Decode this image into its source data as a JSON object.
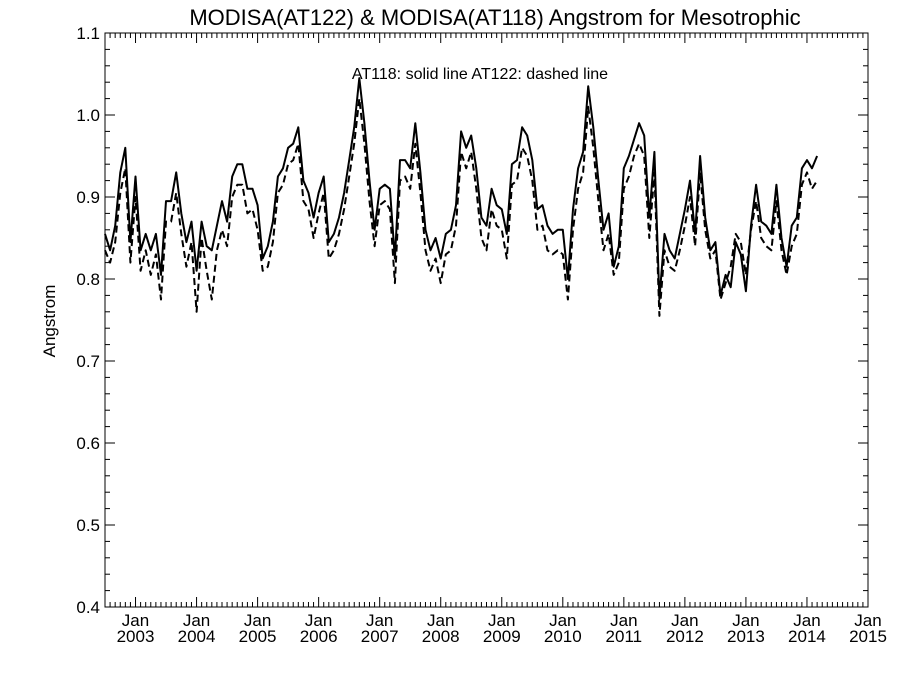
{
  "chart_data": {
    "type": "line",
    "title": "MODISA(AT122) & MODISA(AT118)  Angstrom for Mesotrophic",
    "annotation": "AT118: solid line   AT122: dashed line",
    "ylabel": "Angstrom",
    "xlabel": "",
    "ylim": [
      0.4,
      1.1
    ],
    "y_ticks": [
      "0.4",
      "0.5",
      "0.6",
      "0.7",
      "0.8",
      "0.9",
      "1.0",
      "1.1"
    ],
    "xlim": [
      "2002-07",
      "2015-01"
    ],
    "x_ticks": [
      {
        "month": "Jan",
        "year": "2003",
        "date": "2003-01"
      },
      {
        "month": "Jan",
        "year": "2004",
        "date": "2004-01"
      },
      {
        "month": "Jan",
        "year": "2005",
        "date": "2005-01"
      },
      {
        "month": "Jan",
        "year": "2006",
        "date": "2006-01"
      },
      {
        "month": "Jan",
        "year": "2007",
        "date": "2007-01"
      },
      {
        "month": "Jan",
        "year": "2008",
        "date": "2008-01"
      },
      {
        "month": "Jan",
        "year": "2009",
        "date": "2009-01"
      },
      {
        "month": "Jan",
        "year": "2010",
        "date": "2010-01"
      },
      {
        "month": "Jan",
        "year": "2011",
        "date": "2011-01"
      },
      {
        "month": "Jan",
        "year": "2012",
        "date": "2012-01"
      },
      {
        "month": "Jan",
        "year": "2013",
        "date": "2013-01"
      },
      {
        "month": "Jan",
        "year": "2014",
        "date": "2014-01"
      },
      {
        "month": "Jan",
        "year": "2015",
        "date": "2015-01"
      }
    ],
    "start_month": "2002-07",
    "series": [
      {
        "name": "AT118",
        "style": "solid",
        "color": "#000000",
        "values": [
          0.855,
          0.835,
          0.865,
          0.93,
          0.96,
          0.845,
          0.925,
          0.835,
          0.855,
          0.835,
          0.855,
          0.805,
          0.895,
          0.895,
          0.93,
          0.88,
          0.845,
          0.87,
          0.81,
          0.87,
          0.84,
          0.835,
          0.865,
          0.895,
          0.87,
          0.925,
          0.94,
          0.94,
          0.91,
          0.91,
          0.89,
          0.825,
          0.84,
          0.87,
          0.925,
          0.935,
          0.96,
          0.965,
          0.985,
          0.92,
          0.905,
          0.875,
          0.905,
          0.925,
          0.845,
          0.855,
          0.875,
          0.905,
          0.945,
          0.985,
          1.045,
          0.99,
          0.92,
          0.86,
          0.91,
          0.915,
          0.91,
          0.825,
          0.945,
          0.945,
          0.935,
          0.99,
          0.93,
          0.86,
          0.835,
          0.85,
          0.825,
          0.855,
          0.86,
          0.89,
          0.98,
          0.96,
          0.975,
          0.935,
          0.875,
          0.865,
          0.91,
          0.89,
          0.885,
          0.855,
          0.94,
          0.945,
          0.985,
          0.975,
          0.945,
          0.885,
          0.89,
          0.865,
          0.855,
          0.86,
          0.86,
          0.8,
          0.885,
          0.935,
          0.955,
          1.035,
          0.985,
          0.92,
          0.86,
          0.88,
          0.815,
          0.84,
          0.935,
          0.95,
          0.97,
          0.99,
          0.975,
          0.875,
          0.955,
          0.775,
          0.855,
          0.835,
          0.825,
          0.855,
          0.885,
          0.92,
          0.855,
          0.95,
          0.875,
          0.835,
          0.845,
          0.78,
          0.805,
          0.79,
          0.845,
          0.83,
          0.785,
          0.865,
          0.915,
          0.87,
          0.865,
          0.855,
          0.915,
          0.85,
          0.815,
          0.865,
          0.875,
          0.935,
          0.945,
          0.935,
          0.95
        ]
      },
      {
        "name": "AT122",
        "style": "dashed",
        "color": "#000000",
        "values": [
          0.835,
          0.82,
          0.845,
          0.905,
          0.935,
          0.82,
          0.9,
          0.81,
          0.835,
          0.805,
          0.83,
          0.775,
          0.87,
          0.87,
          0.905,
          0.855,
          0.815,
          0.845,
          0.76,
          0.85,
          0.81,
          0.775,
          0.835,
          0.86,
          0.84,
          0.9,
          0.915,
          0.915,
          0.88,
          0.885,
          0.86,
          0.81,
          0.815,
          0.845,
          0.905,
          0.915,
          0.94,
          0.945,
          0.965,
          0.895,
          0.885,
          0.85,
          0.88,
          0.905,
          0.825,
          0.835,
          0.855,
          0.885,
          0.925,
          0.965,
          1.02,
          0.965,
          0.895,
          0.84,
          0.89,
          0.895,
          0.885,
          0.795,
          0.92,
          0.925,
          0.91,
          0.965,
          0.905,
          0.835,
          0.81,
          0.825,
          0.795,
          0.83,
          0.835,
          0.865,
          0.955,
          0.935,
          0.955,
          0.91,
          0.85,
          0.835,
          0.885,
          0.865,
          0.86,
          0.825,
          0.915,
          0.92,
          0.96,
          0.95,
          0.92,
          0.86,
          0.865,
          0.835,
          0.83,
          0.835,
          0.83,
          0.775,
          0.86,
          0.91,
          0.93,
          1.01,
          0.96,
          0.895,
          0.835,
          0.855,
          0.805,
          0.82,
          0.91,
          0.925,
          0.95,
          0.965,
          0.95,
          0.85,
          0.93,
          0.755,
          0.835,
          0.815,
          0.81,
          0.835,
          0.865,
          0.9,
          0.84,
          0.93,
          0.86,
          0.825,
          0.835,
          0.775,
          0.795,
          0.815,
          0.855,
          0.845,
          0.805,
          0.86,
          0.895,
          0.85,
          0.84,
          0.835,
          0.895,
          0.835,
          0.805,
          0.84,
          0.855,
          0.915,
          0.93,
          0.91,
          0.92
        ]
      }
    ],
    "grid": false,
    "legend": "none"
  }
}
